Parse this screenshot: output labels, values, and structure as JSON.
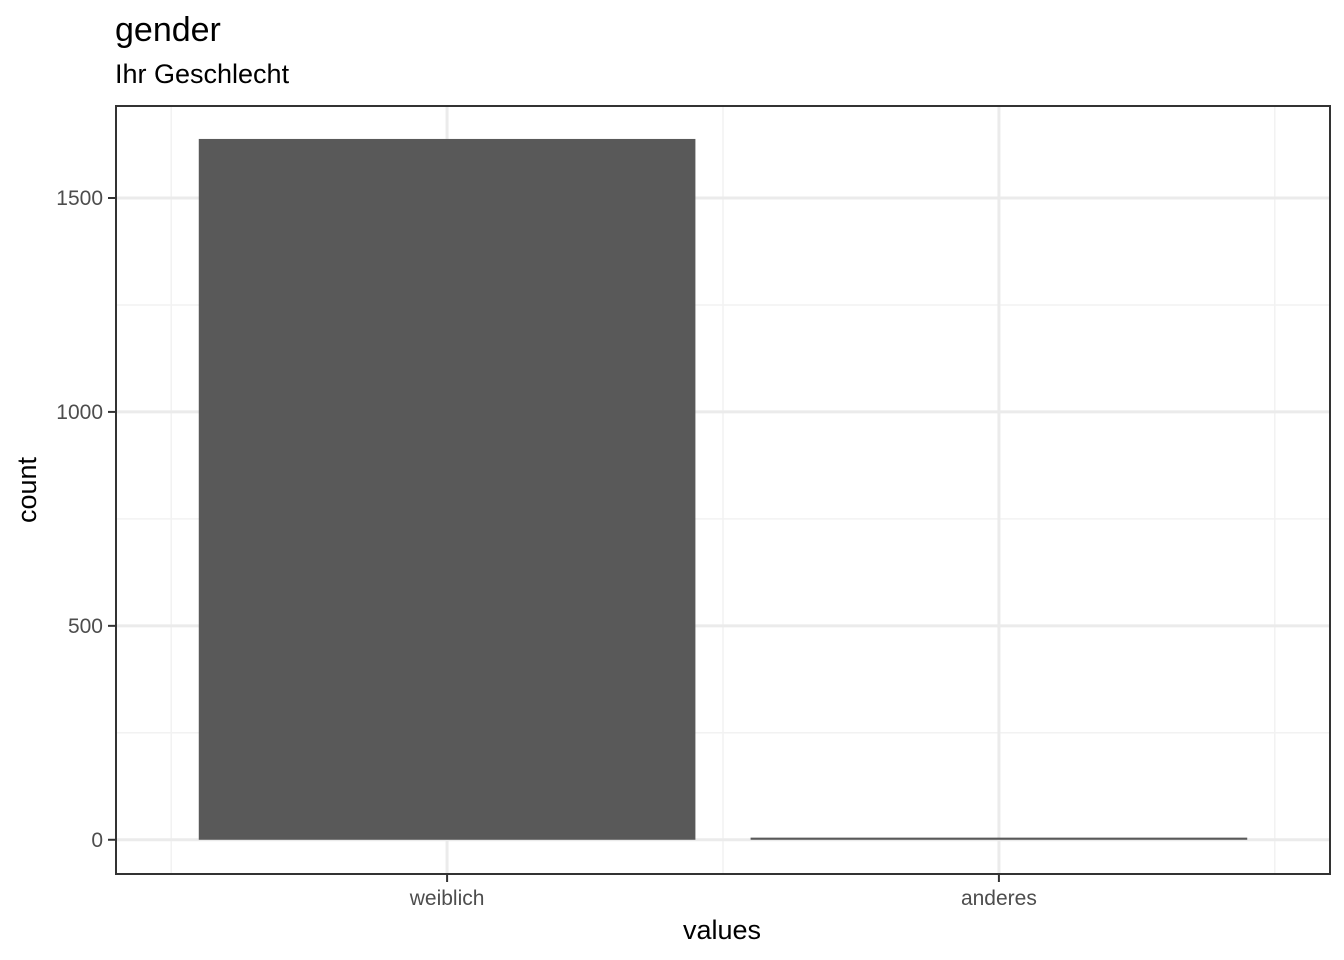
{
  "chart_data": {
    "type": "bar",
    "title": "gender",
    "subtitle": "Ihr Geschlecht",
    "xlabel": "values",
    "ylabel": "count",
    "categories": [
      "weiblich",
      "anderes"
    ],
    "values": [
      1638,
      5
    ],
    "ylim": [
      -80,
      1715
    ],
    "yticks": [
      0,
      500,
      1000,
      1500
    ],
    "yticks_minor": [
      250,
      750,
      1250
    ],
    "grid": true,
    "legend": "none",
    "colors": {
      "bar": "#595959",
      "grid_major": "#ebebeb",
      "grid_minor": "#f2f2f2",
      "frame": "#333333"
    }
  }
}
